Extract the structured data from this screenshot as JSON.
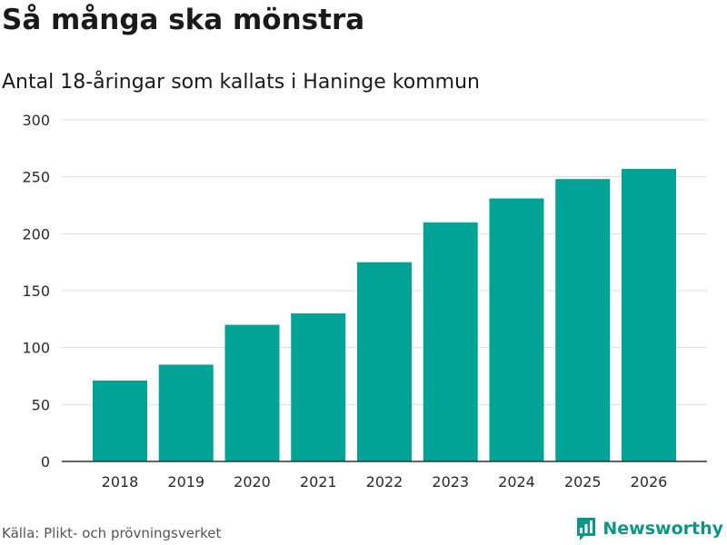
{
  "header": {
    "title": "Så många ska mönstra",
    "subtitle": "Antal 18-åringar som kallats i Haninge kommun"
  },
  "footer": {
    "source": "Källa: Plikt- och prövningsverket",
    "brand": "Newsworthy"
  },
  "colors": {
    "bar": "#00a396",
    "grid": "#dddddd",
    "axis": "#333333",
    "brand": "#0f9488"
  },
  "icons": {
    "brand_logo": "newsworthy-chart-icon"
  },
  "chart_data": {
    "type": "bar",
    "title": "Så många ska mönstra",
    "subtitle": "Antal 18-åringar som kallats i Haninge kommun",
    "xlabel": "",
    "ylabel": "",
    "categories": [
      "2018",
      "2019",
      "2020",
      "2021",
      "2022",
      "2023",
      "2024",
      "2025",
      "2026"
    ],
    "values": [
      71,
      85,
      120,
      130,
      175,
      210,
      231,
      248,
      257
    ],
    "ylim": [
      0,
      300
    ],
    "yticks": [
      0,
      50,
      100,
      150,
      200,
      250,
      300
    ],
    "grid": true,
    "legend": "none"
  }
}
